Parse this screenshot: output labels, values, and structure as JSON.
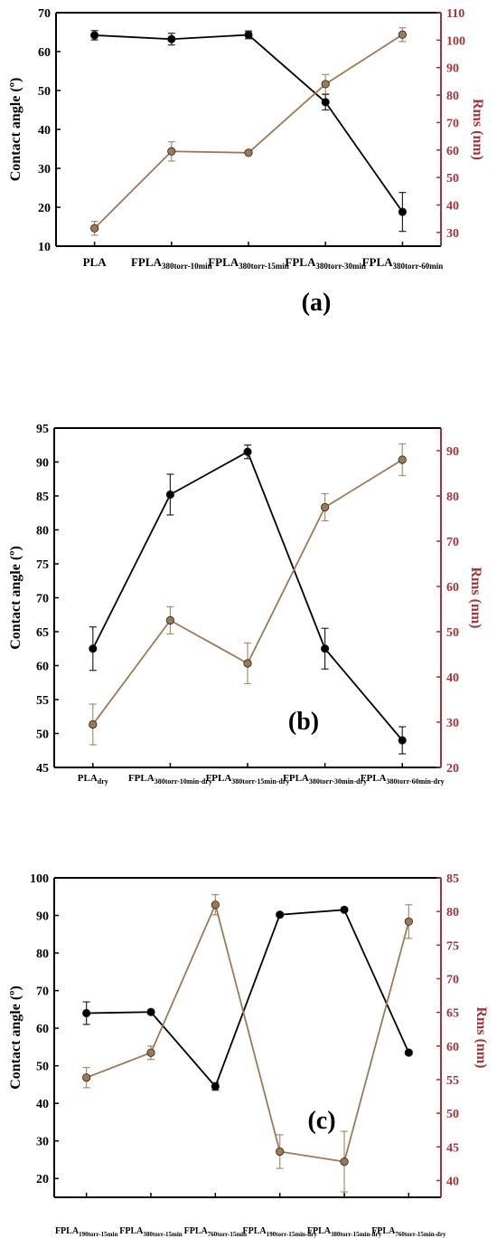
{
  "colors": {
    "left_series": "#000000",
    "right_series": "#9c7a55",
    "right_axis": "#a0353a"
  },
  "chart_data": [
    {
      "type": "line",
      "panel_label": "(a)",
      "ylabel": "Contact angle (º)",
      "y2label": "Rms (nm)",
      "ylim": [
        10,
        70
      ],
      "y2lim": [
        25,
        110
      ],
      "yticks": [
        10,
        20,
        30,
        40,
        50,
        60,
        70
      ],
      "y2ticks": [
        30,
        40,
        50,
        60,
        70,
        80,
        90,
        100,
        110
      ],
      "categories": [
        {
          "base": "PLA",
          "sub": ""
        },
        {
          "base": "FPLA",
          "sub": "380torr-10min"
        },
        {
          "base": "FPLA",
          "sub": "380torr-15min"
        },
        {
          "base": "FPLA",
          "sub": "380torr-30min"
        },
        {
          "base": "FPLA",
          "sub": "380torr-60min"
        }
      ],
      "series": [
        {
          "axis": "left",
          "values": [
            64.2,
            63.2,
            64.3,
            47.0,
            18.8
          ],
          "errors": [
            1.2,
            1.5,
            1.0,
            2.0,
            5.0
          ]
        },
        {
          "axis": "right",
          "values": [
            31.5,
            59.5,
            59.0,
            84.0,
            102.0
          ],
          "errors": [
            2.5,
            3.5,
            0.5,
            3.5,
            2.5
          ]
        }
      ]
    },
    {
      "type": "line",
      "panel_label": "(b)",
      "ylabel": "Contact angle (º)",
      "y2label": "Rms (nm)",
      "ylim": [
        45,
        95
      ],
      "y2lim": [
        20,
        95
      ],
      "yticks": [
        45,
        50,
        55,
        60,
        65,
        70,
        75,
        80,
        85,
        90,
        95
      ],
      "y2ticks": [
        20,
        30,
        40,
        50,
        60,
        70,
        80,
        90
      ],
      "categories": [
        {
          "base": "PLA",
          "sub": "dry"
        },
        {
          "base": "FPLA",
          "sub": "380torr-10min-dry"
        },
        {
          "base": "FPLA",
          "sub": "380torr-15min-dry"
        },
        {
          "base": "FPLA",
          "sub": "380torr-30min-dry"
        },
        {
          "base": "FPLA",
          "sub": "380torr-60min-dry"
        }
      ],
      "series": [
        {
          "axis": "left",
          "values": [
            62.5,
            85.2,
            91.5,
            62.5,
            49.0
          ],
          "errors": [
            3.2,
            3.0,
            1.0,
            3.0,
            2.0
          ]
        },
        {
          "axis": "right",
          "values": [
            29.5,
            52.5,
            43.0,
            77.5,
            88.0
          ],
          "errors": [
            4.5,
            3.0,
            4.5,
            3.0,
            3.5
          ]
        }
      ]
    },
    {
      "type": "line",
      "panel_label": "(c)",
      "ylabel": "Contact angle (º)",
      "y2label": "Rms (nm)",
      "ylim": [
        15,
        100
      ],
      "y2lim": [
        37.5,
        85
      ],
      "yticks": [
        20,
        30,
        40,
        50,
        60,
        70,
        80,
        90,
        100
      ],
      "y2ticks": [
        40,
        45,
        50,
        55,
        60,
        65,
        70,
        75,
        80,
        85
      ],
      "categories": [
        {
          "base": "FPLA",
          "sub": "190torr-15min"
        },
        {
          "base": "FPLA",
          "sub": "380torr-15min"
        },
        {
          "base": "FPLA",
          "sub": "760torr-15min"
        },
        {
          "base": "FPLA",
          "sub": "190torr-15min-dry"
        },
        {
          "base": "FPLA",
          "sub": "380torr-15min-dry"
        },
        {
          "base": "FPLA",
          "sub": "760torr-15min-dry"
        }
      ],
      "series": [
        {
          "axis": "left",
          "values": [
            64.0,
            64.3,
            44.5,
            90.2,
            91.5,
            53.5
          ],
          "errors": [
            3.0,
            0.5,
            1.0,
            0.5,
            0.5,
            0.5
          ]
        },
        {
          "axis": "right",
          "values": [
            55.3,
            59.0,
            81.0,
            44.3,
            42.8,
            78.5
          ],
          "errors": [
            1.5,
            1.0,
            1.5,
            2.5,
            4.5,
            2.5
          ]
        }
      ]
    }
  ]
}
